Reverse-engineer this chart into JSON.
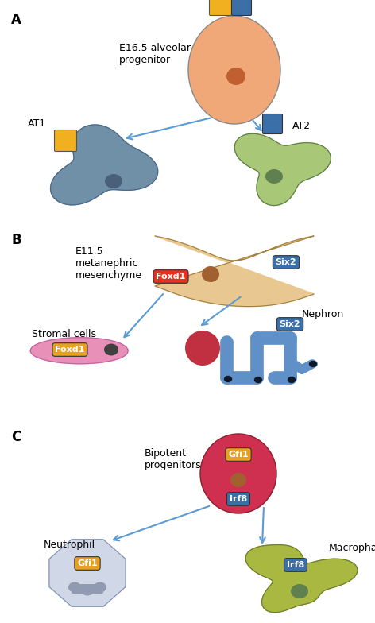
{
  "bg_color": "#ffffff",
  "arrow_color": "#5b9bd5",
  "label_A": "A",
  "label_B": "B",
  "label_C": "C",
  "panel_A": {
    "progenitor_label": "E16.5 alveolar\nprogenitor",
    "progenitor_cell_color": "#f0a878",
    "progenitor_nucleus_color": "#c06030",
    "progenitor_box1_color": "#f0b020",
    "progenitor_box2_color": "#3b6fa8",
    "at1_label": "AT1",
    "at1_cell_color": "#7090a8",
    "at1_nucleus_color": "#4a5f7a",
    "at1_box_color": "#f0b020",
    "at2_label": "AT2",
    "at2_cell_color": "#a8c878",
    "at2_nucleus_color": "#608050",
    "at2_box_color": "#3b6fa8"
  },
  "panel_B": {
    "progenitor_label": "E11.5\nmetanephric\nmesenchyme",
    "progenitor_cell_color": "#e8c890",
    "progenitor_nucleus_color": "#a06030",
    "foxd1_box_color": "#e83020",
    "foxd1_text": "Foxd1",
    "six2_box_color": "#3b6fa8",
    "six2_text": "Six2",
    "stromal_label": "Stromal cells",
    "stromal_cell_color": "#e890b8",
    "stromal_nucleus_color": "#404040",
    "stromal_foxd1_color": "#e8a020",
    "nephron_label": "Nephron",
    "nephron_color": "#6090c8",
    "nephron_outline_color": "#4070a8",
    "six2_box2_color": "#3b6fa8",
    "red_blob_color": "#c03040"
  },
  "panel_C": {
    "progenitor_label": "Bipotent\nprogenitors",
    "progenitor_cell_color": "#d03050",
    "progenitor_nucleus_color": "#a06030",
    "gfi1_box_color": "#e8a020",
    "gfi1_text": "Gfi1",
    "irf8_box_color": "#3b6fa8",
    "irf8_text": "Irf8",
    "neutrophil_label": "Neutrophil",
    "neutrophil_cell_color": "#d0d8e8",
    "neutrophil_nucleus_color": "#909ab0",
    "neutrophil_gfi1_color": "#e8a020",
    "macrophage_label": "Macrophage",
    "macrophage_cell_color": "#a8b840",
    "macrophage_nucleus_color": "#608050",
    "macrophage_irf8_color": "#3b6fa8"
  }
}
